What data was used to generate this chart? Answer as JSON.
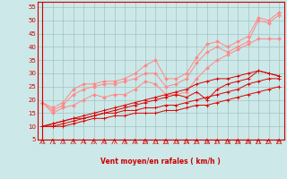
{
  "background_color": "#cce8e8",
  "grid_color": "#99bbbb",
  "xlabel": "Vent moyen/en rafales ( km/h )",
  "xlim": [
    -0.5,
    23.5
  ],
  "ylim": [
    5,
    57
  ],
  "yticks": [
    5,
    10,
    15,
    20,
    25,
    30,
    35,
    40,
    45,
    50,
    55
  ],
  "xticks": [
    0,
    1,
    2,
    3,
    4,
    5,
    6,
    7,
    8,
    9,
    10,
    11,
    12,
    13,
    14,
    15,
    16,
    17,
    18,
    19,
    20,
    21,
    22,
    23
  ],
  "x": [
    0,
    1,
    2,
    3,
    4,
    5,
    6,
    7,
    8,
    9,
    10,
    11,
    12,
    13,
    14,
    15,
    16,
    17,
    18,
    19,
    20,
    21,
    22,
    23
  ],
  "lines_dark": [
    [
      10,
      10,
      10,
      11,
      12,
      13,
      13,
      14,
      14,
      15,
      15,
      15,
      16,
      16,
      17,
      18,
      18,
      19,
      20,
      21,
      22,
      23,
      24,
      25
    ],
    [
      10,
      10,
      11,
      12,
      13,
      14,
      15,
      15,
      16,
      16,
      17,
      17,
      18,
      18,
      19,
      20,
      21,
      22,
      23,
      24,
      26,
      27,
      28,
      28
    ],
    [
      10,
      11,
      12,
      13,
      13,
      14,
      15,
      16,
      17,
      18,
      19,
      20,
      21,
      22,
      21,
      23,
      20,
      24,
      26,
      27,
      28,
      31,
      30,
      29
    ],
    [
      10,
      11,
      12,
      13,
      14,
      15,
      16,
      17,
      18,
      19,
      20,
      21,
      22,
      23,
      24,
      26,
      27,
      28,
      28,
      29,
      30,
      31,
      30,
      29
    ]
  ],
  "lines_light": [
    [
      19,
      15,
      17,
      18,
      20,
      22,
      21,
      22,
      22,
      24,
      27,
      26,
      22,
      22,
      23,
      28,
      32,
      35,
      37,
      39,
      41,
      43,
      43,
      43
    ],
    [
      19,
      16,
      18,
      22,
      24,
      25,
      26,
      26,
      27,
      28,
      30,
      30,
      25,
      26,
      28,
      34,
      38,
      40,
      38,
      40,
      42,
      50,
      49,
      52
    ],
    [
      19,
      17,
      19,
      24,
      26,
      26,
      27,
      27,
      28,
      30,
      33,
      35,
      28,
      28,
      30,
      36,
      41,
      42,
      40,
      42,
      44,
      51,
      50,
      53
    ]
  ],
  "dark_color": "#dd0000",
  "light_color": "#ff8888",
  "marker_dark": "+",
  "marker_light": "D",
  "marker_size_dark": 3,
  "marker_size_light": 2,
  "linewidth": 0.7,
  "ytick_fontsize": 5,
  "xtick_fontsize": 4,
  "xlabel_fontsize": 5.5
}
